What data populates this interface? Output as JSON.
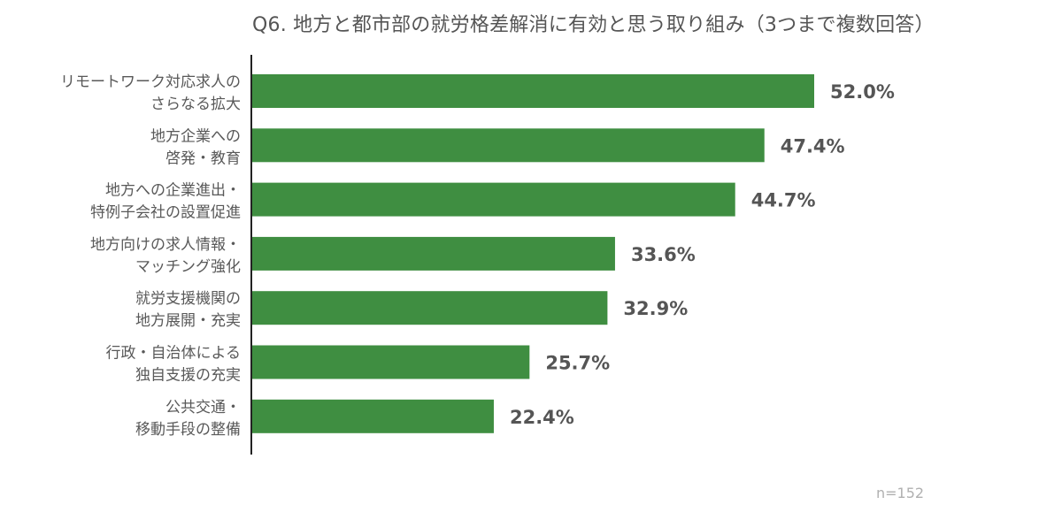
{
  "chart_data": {
    "type": "bar",
    "orientation": "horizontal",
    "title": "Q6. 地方と都市部の就労格差解消に有効と思う取り組み（3つまで複数回答）",
    "categories": [
      [
        "リモートワーク対応求人の",
        "さらなる拡大"
      ],
      [
        "地方企業への",
        "啓発・教育"
      ],
      [
        "地方への企業進出・",
        "特例子会社の設置促進"
      ],
      [
        "地方向けの求人情報・",
        "マッチング強化"
      ],
      [
        "就労支援機関の",
        "地方展開・充実"
      ],
      [
        "行政・自治体による",
        "独自支援の充実"
      ],
      [
        "公共交通・",
        "移動手段の整備"
      ]
    ],
    "values": [
      52.0,
      47.4,
      44.7,
      33.6,
      32.9,
      25.7,
      22.4
    ],
    "value_labels": [
      "52.0%",
      "47.4%",
      "44.7%",
      "33.6%",
      "32.9%",
      "25.7%",
      "22.4%"
    ],
    "xlim": [
      0,
      60
    ],
    "grid": false,
    "legend": "none",
    "bar_color": "#3f8e41",
    "label_color": "#595959",
    "note": "n=152"
  }
}
